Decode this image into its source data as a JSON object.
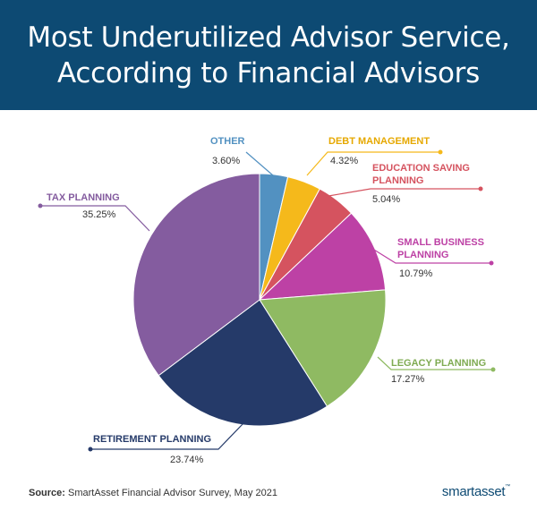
{
  "header": {
    "title_line1": "Most Underutilized Advisor Service,",
    "title_line2": "According to Financial Advisors"
  },
  "chart_data": {
    "type": "pie",
    "title": "Most Underutilized Advisor Service, According to Financial Advisors",
    "slices": [
      {
        "label": "OTHER",
        "value": 3.6,
        "display": "3.60%",
        "color": "#5291c1"
      },
      {
        "label": "DEBT MANAGEMENT",
        "value": 4.32,
        "display": "4.32%",
        "color": "#f5b91b"
      },
      {
        "label": "EDUCATION SAVING PLANNING",
        "label_lines": [
          "EDUCATION SAVING",
          "PLANNING"
        ],
        "value": 5.04,
        "display": "5.04%",
        "color": "#d5535f"
      },
      {
        "label": "SMALL BUSINESS PLANNING",
        "label_lines": [
          "SMALL BUSINESS",
          "PLANNING"
        ],
        "value": 10.79,
        "display": "10.79%",
        "color": "#bd41a5"
      },
      {
        "label": "LEGACY PLANNING",
        "value": 17.27,
        "display": "17.27%",
        "color": "#8fba62"
      },
      {
        "label": "RETIREMENT PLANNING",
        "value": 23.74,
        "display": "23.74%",
        "color": "#253a69"
      },
      {
        "label": "TAX PLANNING",
        "value": 35.25,
        "display": "35.25%",
        "color": "#845c9f"
      }
    ],
    "label_colors": {
      "OTHER": "#5291c1",
      "DEBT MANAGEMENT": "#e6a800",
      "EDUCATION SAVING PLANNING": "#d5535f",
      "SMALL BUSINESS PLANNING": "#bd41a5",
      "LEGACY PLANNING": "#7fab52",
      "RETIREMENT PLANNING": "#253a69",
      "TAX PLANNING": "#845c9f"
    }
  },
  "footer": {
    "source_label": "Source:",
    "source_text": "SmartAsset Financial Advisor Survey, May 2021",
    "logo_smart": "smart",
    "logo_asset": "asset",
    "logo_tm": "™"
  }
}
